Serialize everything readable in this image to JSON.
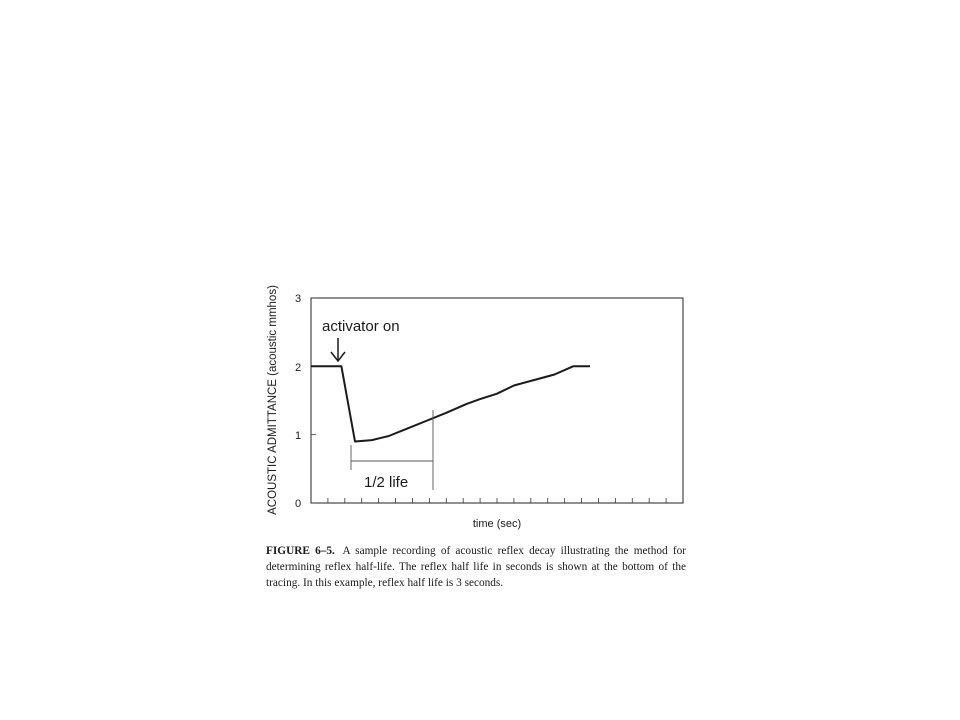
{
  "chart_data": {
    "type": "line",
    "ylabel": "ACOUSTIC ADMITTANCE (acoustic mmhos)",
    "xlabel": "time (sec)",
    "yticks": [
      "0",
      "1",
      "2",
      "3"
    ],
    "ylim": [
      0,
      3
    ],
    "xlim": [
      0,
      22
    ],
    "x_tick_count": 22,
    "grid": false,
    "series": [
      {
        "x": [
          0,
          1.8,
          2.6,
          3.6,
          4.6,
          5.6,
          6.8,
          8.0,
          9.2,
          10.0,
          11.0,
          12.0,
          13.2,
          14.4,
          15.5,
          16.5
        ],
        "y": [
          2.0,
          2.0,
          0.9,
          0.92,
          0.98,
          1.08,
          1.2,
          1.32,
          1.45,
          1.52,
          1.6,
          1.72,
          1.8,
          1.88,
          2.0,
          2.0
        ]
      }
    ],
    "annotations": {
      "activator": "activator on",
      "half_life": "1/2 life"
    }
  },
  "caption": {
    "label": "FIGURE 6–5.",
    "text": "A sample recording of acoustic reflex decay illustrating the method for determining reflex half-life. The reflex half life in seconds is shown at the bottom of the tracing. In this example, reflex half life is 3 seconds."
  }
}
